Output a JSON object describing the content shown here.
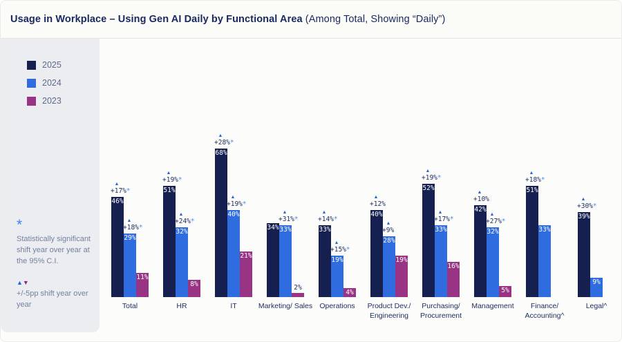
{
  "title": {
    "bold": "Usage in Workplace – Using Gen AI Daily by Functional Area",
    "normal": " (Among Total, Showing “Daily”)"
  },
  "legend": [
    {
      "label": "2025",
      "color": "#152050"
    },
    {
      "label": "2024",
      "color": "#2f6ce0"
    },
    {
      "label": "2023",
      "color": "#993383"
    }
  ],
  "notes": {
    "star_symbol": "*",
    "significance": "Statistically significant shift year over year at the 95% C.I.",
    "up_symbol": "▲",
    "down_symbol": "▼",
    "shift": "+/-5pp shift year over year"
  },
  "colors": {
    "bar_2025": "#152050",
    "bar_2024": "#2f6ce0",
    "bar_2023": "#993383",
    "navy_text": "#1c2b5e",
    "sig_star_blue": "#4a8df0",
    "triangle_blue": "#2563d9",
    "triangle_magenta": "#8e2a7e"
  },
  "chart_data": {
    "type": "bar",
    "title": "Usage in Workplace – Using Gen AI Daily by Functional Area (Among Total, Showing “Daily”)",
    "unit": "%",
    "ylim": [
      0,
      100
    ],
    "grid": false,
    "legend_position": "left",
    "categories": [
      "Total",
      "HR",
      "IT",
      "Marketing/ Sales",
      "Operations",
      "Product Dev./ Engineering",
      "Purchasing/ Procurement",
      "Management",
      "Finance/ Accounting^",
      "Legal^"
    ],
    "series": [
      {
        "name": "2025",
        "color": "#152050",
        "values": [
          46,
          51,
          68,
          34,
          33,
          40,
          52,
          42,
          51,
          39
        ],
        "shifts": [
          "+17%*",
          "+19%*",
          "+28%*",
          null,
          "+14%*",
          "+12%",
          "+19%*",
          "+10%",
          "+18%*",
          "+30%*"
        ]
      },
      {
        "name": "2024",
        "color": "#2f6ce0",
        "values": [
          29,
          32,
          40,
          33,
          19,
          28,
          33,
          32,
          33,
          9
        ],
        "shifts": [
          "+18%*",
          "+24%*",
          "+19%*",
          "+31%*",
          "+15%*",
          "+9%",
          "+17%*",
          "+27%*",
          null,
          null
        ]
      },
      {
        "name": "2023",
        "color": "#993383",
        "values": [
          11,
          8,
          21,
          2,
          4,
          19,
          16,
          5,
          null,
          null
        ],
        "shifts": [
          null,
          null,
          null,
          null,
          null,
          null,
          null,
          null,
          null,
          null
        ]
      }
    ]
  }
}
